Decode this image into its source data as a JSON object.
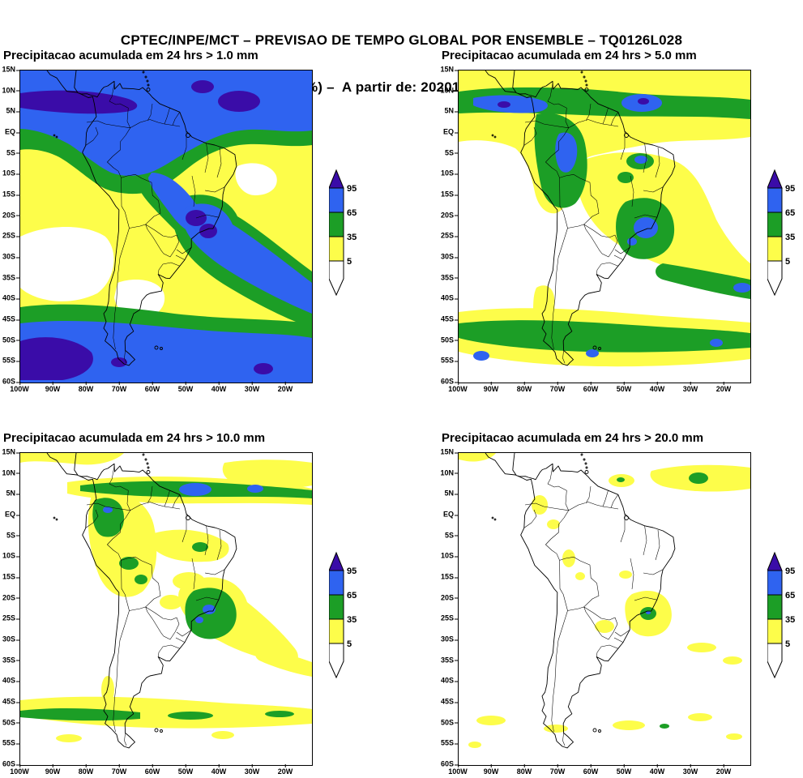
{
  "header": {
    "line1": "CPTEC/INPE/MCT – PREVISAO DE TEMPO GLOBAL POR ENSEMBLE – TQ0126L028",
    "line2": "Previsao de Probabilidades (%) –  A partir de: 2020120900Z   Valido para: 2020122212Z"
  },
  "panels": [
    {
      "id": "precip-gt-1mm",
      "title": "Precipitacao acumulada em 24 hrs > 1.0 mm",
      "threshold_mm": 1.0
    },
    {
      "id": "precip-gt-5mm",
      "title": "Precipitacao acumulada em 24 hrs > 5.0 mm",
      "threshold_mm": 5.0
    },
    {
      "id": "precip-gt-10mm",
      "title": "Precipitacao acumulada em 24 hrs > 10.0 mm",
      "threshold_mm": 10.0
    },
    {
      "id": "precip-gt-20mm",
      "title": "Precipitacao acumulada em 24 hrs > 20.0 mm",
      "threshold_mm": 20.0
    }
  ],
  "axes": {
    "lat": {
      "name": "latitude",
      "dir": "y",
      "labels": [
        "15N",
        "10N",
        "5N",
        "EQ",
        "5S",
        "10S",
        "15S",
        "20S",
        "25S",
        "30S",
        "35S",
        "40S",
        "45S",
        "50S",
        "55S",
        "60S"
      ]
    },
    "lon": {
      "name": "longitude",
      "dir": "x",
      "labels": [
        "100W",
        "90W",
        "80W",
        "70W",
        "60W",
        "50W",
        "40W",
        "30W",
        "20W"
      ]
    }
  },
  "colorbar": {
    "labels": [
      "95",
      "65",
      "35",
      "5"
    ]
  },
  "theme": {
    "purple": "#3a0ca8",
    "blue": "#2f63f0",
    "green": "#1c9e26",
    "yellow": "#fdfd4a",
    "page_bg": "#ffffff",
    "line_color": "#000000"
  },
  "chart_data": [
    {
      "type": "heatmap",
      "title": "Precipitacao acumulada em 24 hrs > 1.0 mm",
      "variable": "probability of 24h accumulated precipitation exceeding threshold (%)",
      "threshold_mm": 1.0,
      "xlabel": "longitude",
      "ylabel": "latitude",
      "x_ticks": [
        "100W",
        "90W",
        "80W",
        "70W",
        "60W",
        "50W",
        "40W",
        "30W",
        "20W"
      ],
      "y_ticks": [
        "15N",
        "10N",
        "5N",
        "EQ",
        "5S",
        "10S",
        "15S",
        "20S",
        "25S",
        "30S",
        "35S",
        "40S",
        "45S",
        "50S",
        "55S",
        "60S"
      ],
      "levels_percent": [
        5,
        35,
        65,
        95
      ],
      "level_colors": [
        "#ffffff",
        "#fdfd4a",
        "#1c9e26",
        "#2f63f0",
        "#3a0ca8"
      ],
      "legend_labels": [
        "95",
        "65",
        "35",
        "5"
      ],
      "summary": "Probabilities >65% (blue) with >95% cores (purple) along the ITCZ near 5N-10N, over Amazonia/northern South America, over southeast Brazil extending southeastward into the Atlantic, and over the Southern Ocean south of ~45S; 5-35% (yellow) over the subtropical southeast Pacific, Patagonia and nearby Atlantic, with <5% (white) pockets there."
    },
    {
      "type": "heatmap",
      "title": "Precipitacao acumulada em 24 hrs > 5.0 mm",
      "variable": "probability of 24h accumulated precipitation exceeding threshold (%)",
      "threshold_mm": 5.0,
      "xlabel": "longitude",
      "ylabel": "latitude",
      "x_ticks": [
        "100W",
        "90W",
        "80W",
        "70W",
        "60W",
        "50W",
        "40W",
        "30W",
        "20W"
      ],
      "y_ticks": [
        "15N",
        "10N",
        "5N",
        "EQ",
        "5S",
        "10S",
        "15S",
        "20S",
        "25S",
        "30S",
        "35S",
        "40S",
        "45S",
        "50S",
        "55S",
        "60S"
      ],
      "levels_percent": [
        5,
        35,
        65,
        95
      ],
      "level_colors": [
        "#ffffff",
        "#fdfd4a",
        "#1c9e26",
        "#2f63f0",
        "#3a0ca8"
      ],
      "legend_labels": [
        "95",
        "65",
        "35",
        "5"
      ],
      "summary": "35-65% (green) band along the ITCZ with small >65% and >95% cores, green over western Amazonia and southeast Brazil (local blue spots), a green band near 45S-52S inside a broad 5-35% (yellow) band; mostly <5% (white) over the southeast Pacific, Patagonia and parts of the Atlantic."
    },
    {
      "type": "heatmap",
      "title": "Precipitacao acumulada em 24 hrs > 10.0 mm",
      "variable": "probability of 24h accumulated precipitation exceeding threshold (%)",
      "threshold_mm": 10.0,
      "xlabel": "longitude",
      "ylabel": "latitude",
      "x_ticks": [
        "100W",
        "90W",
        "80W",
        "70W",
        "60W",
        "50W",
        "40W",
        "30W",
        "20W"
      ],
      "y_ticks": [
        "15N",
        "10N",
        "5N",
        "EQ",
        "5S",
        "10S",
        "15S",
        "20S",
        "25S",
        "30S",
        "35S",
        "40S",
        "45S",
        "50S",
        "55S",
        "60S"
      ],
      "levels_percent": [
        5,
        35,
        65,
        95
      ],
      "level_colors": [
        "#ffffff",
        "#fdfd4a",
        "#1c9e26",
        "#2f63f0",
        "#3a0ca8"
      ],
      "legend_labels": [
        "95",
        "65",
        "35",
        "5"
      ],
      "summary": "Mostly <35%: green patches along the ITCZ (small >65% cores near 50W and 30W), over Colombia/western Amazonia, over Peru/Acre, and over southeast Brazil with small blue spots; yellow 5-35% band near 45S-55S; elsewhere largely white (<5%)."
    },
    {
      "type": "heatmap",
      "title": "Precipitacao acumulada em 24 hrs > 20.0 mm",
      "variable": "probability of 24h accumulated precipitation exceeding threshold (%)",
      "threshold_mm": 20.0,
      "xlabel": "longitude",
      "ylabel": "latitude",
      "x_ticks": [
        "100W",
        "90W",
        "80W",
        "70W",
        "60W",
        "50W",
        "40W",
        "30W",
        "20W"
      ],
      "y_ticks": [
        "15N",
        "10N",
        "5N",
        "EQ",
        "5S",
        "10S",
        "15S",
        "20S",
        "25S",
        "30S",
        "35S",
        "40S",
        "45S",
        "50S",
        "55S",
        "60S"
      ],
      "levels_percent": [
        5,
        35,
        65,
        95
      ],
      "level_colors": [
        "#ffffff",
        "#fdfd4a",
        "#1c9e26",
        "#2f63f0",
        "#3a0ca8"
      ],
      "legend_labels": [
        "95",
        "65",
        "35",
        "5"
      ],
      "summary": "Mostly <5% (white): scattered 5-35% yellow patches over the tropical Atlantic trade band (small green spot near 8N/30W), Colombia, western Amazonia, Paraguay, southeast Brazil (35-65% green core near 23S/46W) and streaks near 45S-55S."
    }
  ]
}
